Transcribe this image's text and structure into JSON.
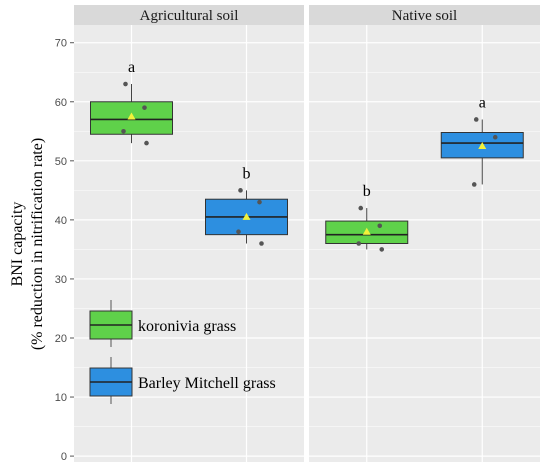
{
  "chart_data": {
    "type": "box",
    "ylabel_line1": "BNI capacity",
    "ylabel_line2": "(% reduction in nitrification rate)",
    "ylim": [
      -1,
      73
    ],
    "yticks": [
      0,
      10,
      20,
      30,
      40,
      50,
      60,
      70
    ],
    "grid": true,
    "panels": [
      {
        "title": "Agricultural soil",
        "boxes": [
          {
            "series": "koronivia grass",
            "min": 53,
            "q1": 54.5,
            "median": 57,
            "q3": 60,
            "max": 63,
            "mean": 57.5,
            "points": [
              63,
              59,
              55,
              53
            ],
            "letter": "a"
          },
          {
            "series": "Barley Mitchell grass",
            "min": 36,
            "q1": 37.5,
            "median": 40.5,
            "q3": 43.5,
            "max": 45,
            "mean": 40.5,
            "points": [
              45,
              43,
              38,
              36
            ],
            "letter": "b"
          }
        ]
      },
      {
        "title": "Native soil",
        "boxes": [
          {
            "series": "koronivia grass",
            "min": 35,
            "q1": 36,
            "median": 37.5,
            "q3": 39.8,
            "max": 42,
            "mean": 38,
            "points": [
              42,
              39,
              36,
              35
            ],
            "letter": "b"
          },
          {
            "series": "Barley Mitchell grass",
            "min": 46,
            "q1": 50.5,
            "median": 53,
            "q3": 54.8,
            "max": 57,
            "mean": 52.5,
            "points": [
              57,
              54,
              46
            ],
            "letter": "a"
          }
        ]
      }
    ],
    "legend": [
      {
        "name": "koronivia grass",
        "color": "#5fd14a"
      },
      {
        "name": "Barley Mitchell grass",
        "color": "#2d8fe0"
      }
    ],
    "colors": {
      "koronivia grass": "#5fd14a",
      "Barley Mitchell grass": "#2d8fe0",
      "mean_marker": "#f2f23a",
      "panel_bg": "#ebebeb",
      "strip_bg": "#d9d9d9"
    }
  }
}
